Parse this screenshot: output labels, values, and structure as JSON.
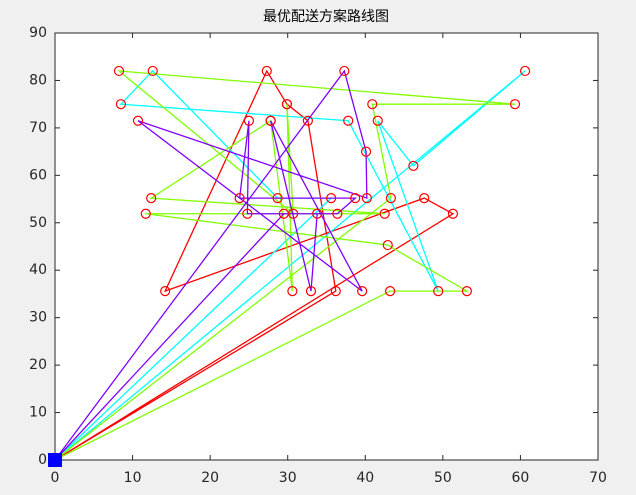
{
  "chart_data": {
    "type": "line",
    "title": "最优配送方案路线图",
    "xlim": [
      0,
      70
    ],
    "xticks": [
      0,
      10,
      20,
      30,
      40,
      50,
      60,
      70
    ],
    "ylim": [
      0,
      90
    ],
    "yticks": [
      0,
      10,
      20,
      30,
      40,
      50,
      60,
      70,
      80,
      90
    ],
    "marker_color": "#ff0000",
    "depot": {
      "x": 0,
      "y": 0,
      "color": "#0000ff"
    },
    "series": [
      {
        "color": "#ff0000",
        "x": [
          0,
          36.2,
          32.6,
          29.9,
          27.3,
          14.2,
          47.6,
          51.3,
          0
        ],
        "y": [
          0,
          35.6,
          71.5,
          75,
          82,
          35.6,
          55.2,
          51.9,
          0
        ]
      },
      {
        "color": "#00ffff",
        "x": [
          0,
          35.6,
          28.7,
          12.6,
          8.5,
          37.8,
          49.4,
          41.6,
          46.2,
          60.6,
          0
        ],
        "y": [
          0,
          55.2,
          55.2,
          82,
          75,
          71.5,
          35.6,
          71.5,
          62,
          82,
          0
        ]
      },
      {
        "color": "#80ff00",
        "x": [
          0,
          43.2,
          53.1,
          42.9,
          11.7,
          42.5,
          12.4,
          27.8,
          30.6,
          29.9,
          30.7,
          8.25,
          59.3,
          40.9,
          43.3,
          0
        ],
        "y": [
          0,
          35.6,
          35.6,
          45.3,
          51.9,
          51.9,
          55.2,
          71.5,
          35.6,
          75,
          51.9,
          82,
          75,
          75,
          55.2,
          0
        ]
      },
      {
        "color": "#8000ff",
        "x": [
          0,
          37.3,
          40.1,
          40.2,
          10.7,
          39.6,
          27.8,
          33.0,
          33.8,
          24.8,
          25.0,
          23.8,
          38.7,
          36.4,
          29.5,
          0
        ],
        "y": [
          0,
          82,
          65,
          55.2,
          71.5,
          35.6,
          71.5,
          35.6,
          51.9,
          51.9,
          71.5,
          55.2,
          55.2,
          51.9,
          51.9,
          0
        ]
      }
    ]
  }
}
